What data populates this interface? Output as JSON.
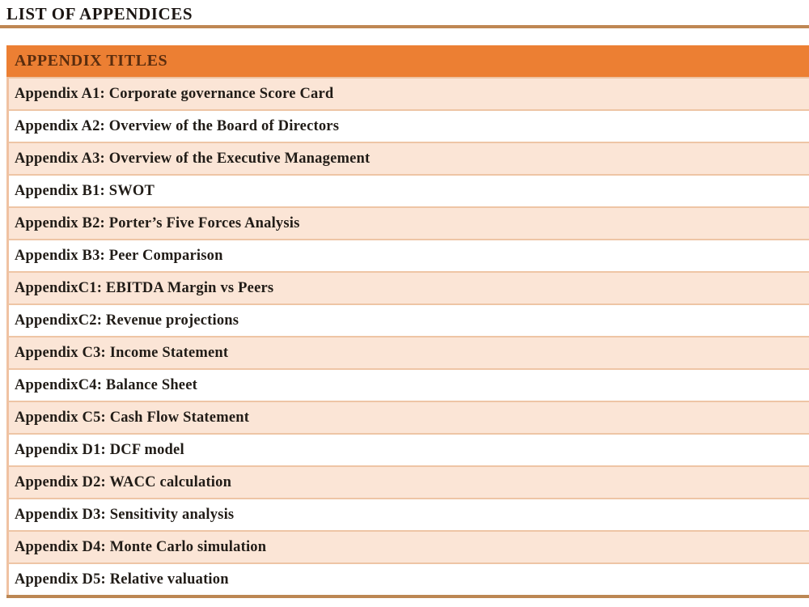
{
  "page": {
    "title": "LIST OF APPENDICES"
  },
  "table": {
    "header": "APPENDIX TITLES",
    "rows": [
      "Appendix A1: Corporate governance Score Card",
      "Appendix A2: Overview of the Board of Directors",
      "Appendix A3: Overview of the Executive Management",
      "Appendix B1: SWOT",
      "Appendix B2: Porter’s Five Forces Analysis",
      "Appendix B3: Peer Comparison",
      "AppendixC1: EBITDA Margin vs Peers",
      "AppendixC2: Revenue projections",
      "Appendix C3: Income Statement",
      "AppendixC4: Balance Sheet",
      "Appendix C5: Cash Flow Statement",
      "Appendix D1: DCF model",
      "Appendix D2: WACC calculation",
      "Appendix D3: Sensitivity analysis",
      "Appendix D4: Monte Carlo simulation",
      "Appendix D5: Relative valuation"
    ]
  },
  "colors": {
    "header_bg": "#EC7F33",
    "header_text": "#5A2D0E",
    "row_alt_bg": "#FBE5D6",
    "row_bg": "#FFFFFF",
    "row_separator": "#EEC5A5",
    "accent_rule": "#BC8753",
    "body_text": "#211C17"
  }
}
